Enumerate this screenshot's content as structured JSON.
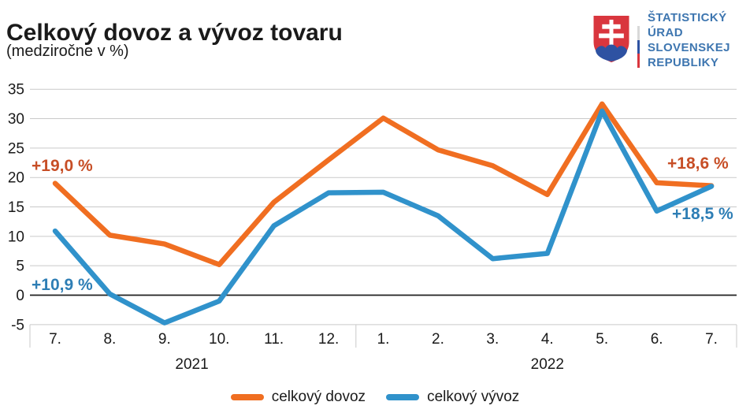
{
  "header": {
    "title": "Celkový dovoz a vývoz tovaru",
    "subtitle": "(medziročne v %)"
  },
  "logo": {
    "org_name_lines": [
      "ŠTATISTICKÝ",
      "ÚRAD",
      "SLOVENSKEJ",
      "REPUBLIKY"
    ],
    "text_color": "#3E76B0",
    "shield_red": "#D9363E",
    "shield_blue": "#2E52A2",
    "cross_white": "#ffffff",
    "bar_colors": [
      "#D8D8D8",
      "#2E52A2",
      "#D9363E"
    ]
  },
  "chart_data": {
    "type": "line",
    "categories": [
      "7.",
      "8.",
      "9.",
      "10.",
      "11.",
      "12.",
      "1.",
      "2.",
      "3.",
      "4.",
      "5.",
      "6.",
      "7."
    ],
    "year_groups": [
      {
        "label": "2021",
        "from": 0,
        "to": 5
      },
      {
        "label": "2022",
        "from": 6,
        "to": 12
      }
    ],
    "series": [
      {
        "name": "celkový dovoz",
        "color": "#F06E21",
        "values": [
          19.0,
          10.2,
          8.7,
          5.2,
          15.8,
          23.0,
          30.1,
          24.7,
          22.0,
          17.1,
          32.5,
          19.1,
          18.6
        ]
      },
      {
        "name": "celkový vývoz",
        "color": "#3092CB",
        "values": [
          10.9,
          0.2,
          -4.7,
          -1.0,
          11.8,
          17.4,
          17.5,
          13.5,
          6.2,
          7.1,
          31.3,
          14.3,
          18.5
        ]
      }
    ],
    "ylim": [
      -5,
      35
    ],
    "ytick_step": 5,
    "grid": true,
    "zero_line_color": "#202020",
    "grid_color": "#c9c9c9",
    "legend_position": "bottom",
    "annotations": [
      {
        "text": "+19,0 %",
        "series": "celkový dovoz",
        "point": "first",
        "color": "#C74E26"
      },
      {
        "text": "+10,9 %",
        "series": "celkový vývoz",
        "point": "first",
        "color": "#2E7EB5"
      },
      {
        "text": "+18,6 %",
        "series": "celkový dovoz",
        "point": "last",
        "color": "#C74E26"
      },
      {
        "text": "+18,5 %",
        "series": "celkový vývoz",
        "point": "last",
        "color": "#2E7EB5"
      }
    ]
  },
  "legend": {
    "items": [
      {
        "label": "celkový dovoz",
        "color": "#F06E21"
      },
      {
        "label": "celkový vývoz",
        "color": "#3092CB"
      }
    ]
  }
}
